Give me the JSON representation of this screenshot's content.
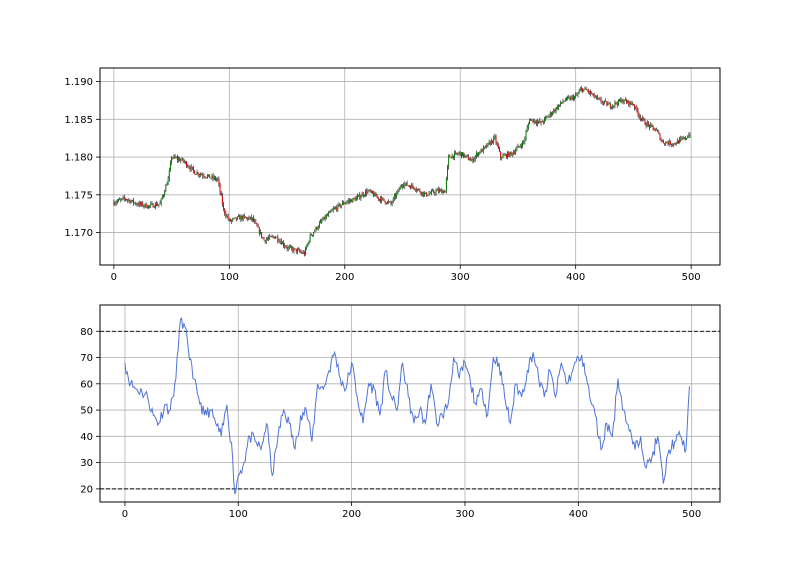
{
  "chart_data": [
    {
      "type": "candlestick",
      "title": "",
      "xlabel": "",
      "ylabel": "",
      "xlim": [
        -12,
        525
      ],
      "ylim": [
        1.1657,
        1.1918
      ],
      "x_ticks": [
        0,
        100,
        200,
        300,
        400,
        500
      ],
      "y_ticks": [
        1.17,
        1.175,
        1.18,
        1.185,
        1.19
      ],
      "x_tick_labels": [
        "0",
        "100",
        "200",
        "300",
        "400",
        "500"
      ],
      "y_tick_labels": [
        "1.170",
        "1.175",
        "1.180",
        "1.185",
        "1.190"
      ],
      "grid": true,
      "legend": "none",
      "n_bars": 500,
      "close_anchors": [
        [
          0,
          1.174
        ],
        [
          10,
          1.1745
        ],
        [
          20,
          1.1738
        ],
        [
          30,
          1.1735
        ],
        [
          40,
          1.1738
        ],
        [
          47,
          1.177
        ],
        [
          50,
          1.18
        ],
        [
          60,
          1.1795
        ],
        [
          70,
          1.178
        ],
        [
          80,
          1.1775
        ],
        [
          90,
          1.177
        ],
        [
          95,
          1.173
        ],
        [
          100,
          1.1715
        ],
        [
          110,
          1.172
        ],
        [
          120,
          1.1718
        ],
        [
          130,
          1.169
        ],
        [
          140,
          1.1695
        ],
        [
          150,
          1.168
        ],
        [
          160,
          1.1675
        ],
        [
          165,
          1.1672
        ],
        [
          170,
          1.1695
        ],
        [
          180,
          1.1715
        ],
        [
          190,
          1.173
        ],
        [
          200,
          1.174
        ],
        [
          210,
          1.1745
        ],
        [
          220,
          1.1755
        ],
        [
          230,
          1.1745
        ],
        [
          240,
          1.1738
        ],
        [
          250,
          1.1765
        ],
        [
          260,
          1.176
        ],
        [
          270,
          1.175
        ],
        [
          280,
          1.1755
        ],
        [
          287,
          1.1755
        ],
        [
          290,
          1.18
        ],
        [
          300,
          1.1805
        ],
        [
          310,
          1.1795
        ],
        [
          315,
          1.1805
        ],
        [
          320,
          1.181
        ],
        [
          330,
          1.1825
        ],
        [
          335,
          1.18
        ],
        [
          345,
          1.1805
        ],
        [
          355,
          1.182
        ],
        [
          360,
          1.185
        ],
        [
          370,
          1.1845
        ],
        [
          380,
          1.186
        ],
        [
          390,
          1.1875
        ],
        [
          400,
          1.188
        ],
        [
          405,
          1.189
        ],
        [
          410,
          1.1888
        ],
        [
          420,
          1.1875
        ],
        [
          430,
          1.1868
        ],
        [
          440,
          1.1875
        ],
        [
          450,
          1.187
        ],
        [
          455,
          1.1855
        ],
        [
          460,
          1.1845
        ],
        [
          470,
          1.1835
        ],
        [
          475,
          1.182
        ],
        [
          485,
          1.1818
        ],
        [
          495,
          1.1825
        ],
        [
          500,
          1.1832
        ]
      ],
      "colors": {
        "up": "#008000",
        "down": "#d40000",
        "wick": "#000000"
      }
    },
    {
      "type": "line",
      "title": "",
      "xlabel": "",
      "ylabel": "",
      "xlim": [
        -22,
        525
      ],
      "ylim": [
        15,
        90
      ],
      "x_ticks": [
        0,
        100,
        200,
        300,
        400,
        500
      ],
      "y_ticks": [
        20,
        30,
        40,
        50,
        60,
        70,
        80
      ],
      "x_tick_labels": [
        "0",
        "100",
        "200",
        "300",
        "400",
        "500"
      ],
      "y_tick_labels": [
        "20",
        "30",
        "40",
        "50",
        "60",
        "70",
        "80"
      ],
      "grid": true,
      "legend": "none",
      "reference_lines": [
        80,
        20
      ],
      "series": [
        {
          "color": "#4f74d6",
          "x": [
            0,
            5,
            10,
            15,
            20,
            25,
            30,
            35,
            40,
            45,
            48,
            50,
            55,
            60,
            65,
            70,
            75,
            80,
            85,
            90,
            95,
            97,
            100,
            105,
            110,
            115,
            120,
            125,
            130,
            135,
            140,
            145,
            150,
            155,
            160,
            165,
            170,
            175,
            180,
            185,
            190,
            195,
            200,
            205,
            210,
            215,
            220,
            225,
            230,
            235,
            240,
            245,
            250,
            255,
            260,
            265,
            270,
            275,
            280,
            285,
            290,
            295,
            300,
            305,
            310,
            315,
            320,
            325,
            330,
            335,
            340,
            345,
            350,
            355,
            360,
            365,
            370,
            375,
            380,
            385,
            390,
            395,
            400,
            405,
            410,
            415,
            420,
            425,
            430,
            435,
            440,
            445,
            450,
            455,
            460,
            465,
            470,
            475,
            480,
            485,
            490,
            495,
            498
          ],
          "values": [
            68,
            60,
            58,
            57,
            55,
            48,
            45,
            52,
            50,
            62,
            80,
            85,
            77,
            62,
            55,
            48,
            50,
            45,
            40,
            52,
            32,
            18,
            25,
            30,
            40,
            38,
            35,
            45,
            25,
            40,
            50,
            45,
            35,
            48,
            50,
            38,
            60,
            58,
            65,
            72,
            62,
            58,
            68,
            55,
            45,
            60,
            58,
            48,
            65,
            55,
            50,
            68,
            55,
            45,
            50,
            45,
            60,
            45,
            48,
            52,
            70,
            62,
            68,
            60,
            52,
            58,
            48,
            70,
            68,
            55,
            45,
            60,
            55,
            65,
            72,
            62,
            55,
            65,
            55,
            68,
            60,
            65,
            70,
            68,
            55,
            48,
            35,
            45,
            40,
            62,
            50,
            42,
            35,
            40,
            28,
            32,
            40,
            22,
            35,
            38,
            40,
            35,
            59
          ]
        }
      ]
    }
  ]
}
